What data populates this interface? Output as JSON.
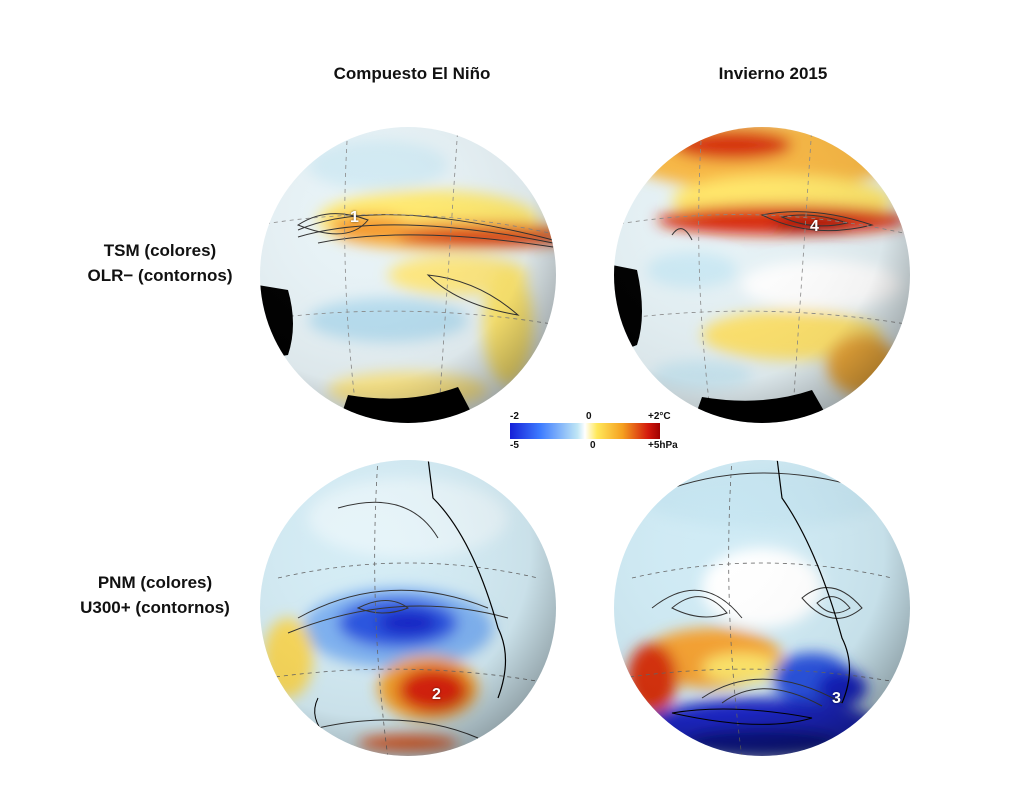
{
  "columns": [
    "Compuesto El Niño",
    "Invierno 2015"
  ],
  "rows": [
    {
      "line1": "TSM (colores)",
      "line2": "OLR− (contornos)"
    },
    {
      "line1": "PNM (colores)",
      "line2": "U300+ (contornos)"
    }
  ],
  "panel_numbers": [
    "1",
    "4",
    "2",
    "3"
  ],
  "legend": {
    "top_labels": [
      "-2",
      "0",
      "+2°C"
    ],
    "bottom_labels": [
      "-5",
      "0",
      "+5hPa"
    ]
  },
  "colors": {
    "negative_strong": "#1520d8",
    "negative_light": "#bfe6f5",
    "neutral": "#ffffff",
    "positive_light": "#ffe85a",
    "positive_strong": "#d41a0d",
    "land": "#000000"
  }
}
